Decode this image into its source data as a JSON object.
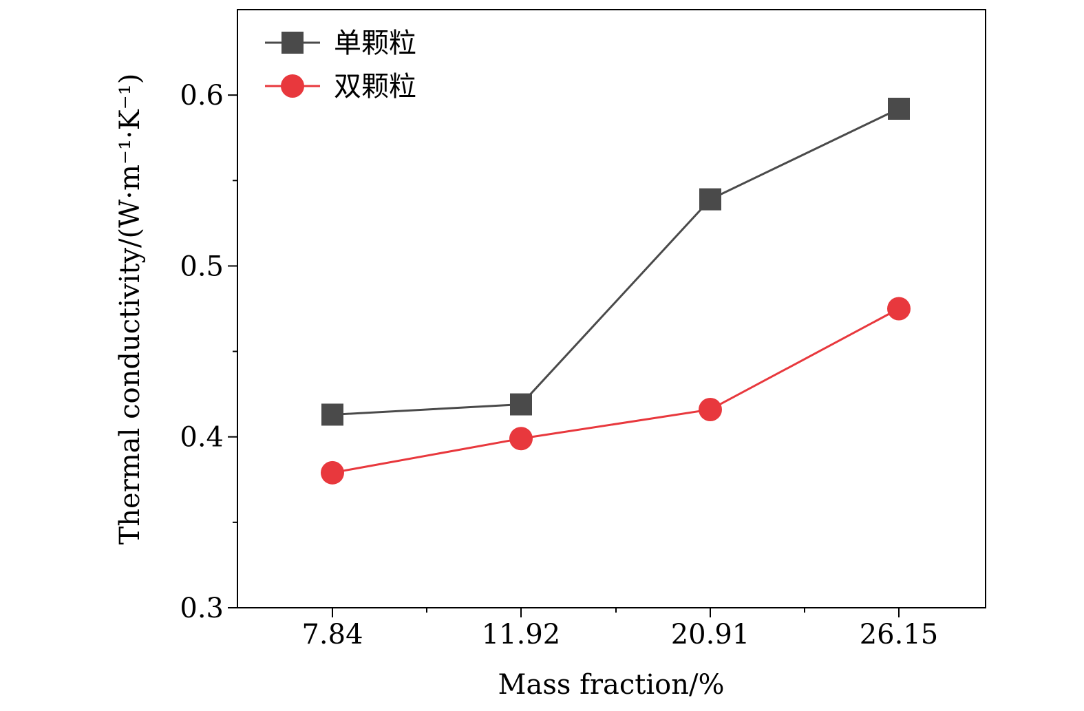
{
  "chart_data": {
    "type": "line",
    "categories": [
      "7.84",
      "11.92",
      "20.91",
      "26.15"
    ],
    "series": [
      {
        "name": "单颗粒",
        "values": [
          0.413,
          0.419,
          0.539,
          0.592
        ],
        "color": "#4a4a4a",
        "marker": "square"
      },
      {
        "name": "双颗粒",
        "values": [
          0.379,
          0.399,
          0.416,
          0.475
        ],
        "color": "#e8383d",
        "marker": "circle"
      }
    ],
    "xlabel": "Mass fraction/%",
    "ylabel": "Thermal conductivity/(W·m⁻¹·K⁻¹)",
    "ylim": [
      0.3,
      0.65
    ],
    "yticks": [
      "0.3",
      "0.4",
      "0.5",
      "0.6"
    ],
    "grid": false,
    "legend_position": "top-left"
  }
}
